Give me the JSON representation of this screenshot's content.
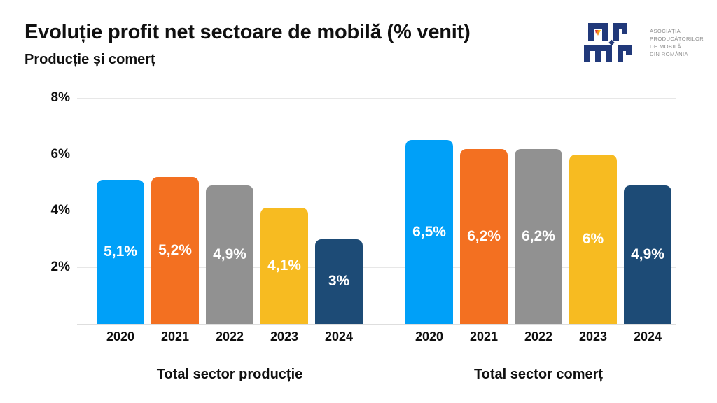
{
  "header": {
    "title": "Evoluție profit net sectoare de mobilă (% venit)",
    "subtitle": "Producție și comerț"
  },
  "logo": {
    "abbreviation": "APMR",
    "lines": [
      "Asociația",
      "Producătorilor",
      "De Mobilă",
      "Din România"
    ],
    "icon_color": "#21397a",
    "accent_orange": "#f7941d",
    "accent_yellow": "#ffd200",
    "accent_red": "#e23a2e"
  },
  "chart_data": {
    "type": "bar",
    "title": "Evoluție profit net sectoare de mobilă (% venit)",
    "subtitle": "Producție și comerț",
    "categories": [
      "2020",
      "2021",
      "2022",
      "2023",
      "2024"
    ],
    "groups": [
      {
        "label": "Total sector producție",
        "values": [
          5.1,
          5.2,
          4.9,
          4.1,
          3.0
        ],
        "value_labels": [
          "5,1%",
          "5,2%",
          "4,9%",
          "4,1%",
          "3%"
        ]
      },
      {
        "label": "Total sector comerț",
        "values": [
          6.5,
          6.2,
          6.2,
          6.0,
          4.9
        ],
        "value_labels": [
          "6,5%",
          "6,2%",
          "6,2%",
          "6%",
          "4,9%"
        ]
      }
    ],
    "bar_colors": [
      "#00A0F8",
      "#F37021",
      "#919191",
      "#F7BB21",
      "#1D4B76"
    ],
    "y_ticks": [
      "2%",
      "4%",
      "6%",
      "8%"
    ],
    "y_tick_values": [
      2,
      4,
      6,
      8
    ],
    "ylim": [
      0,
      8
    ],
    "grid": "horizontal",
    "legend": "none"
  }
}
